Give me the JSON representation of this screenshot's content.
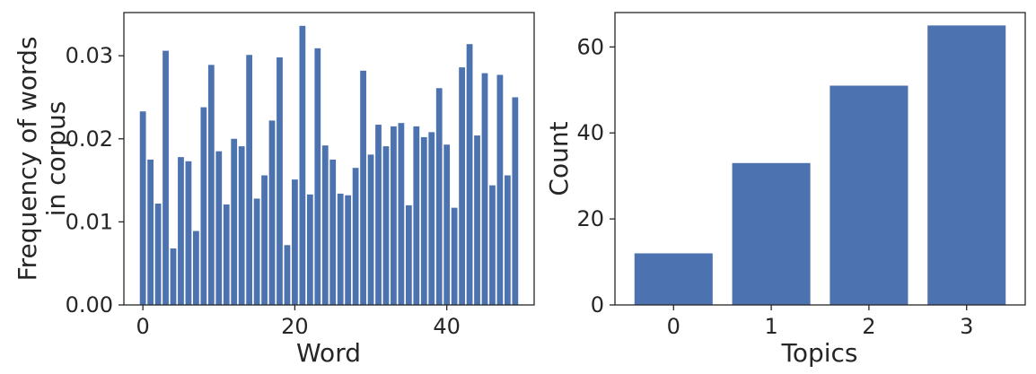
{
  "chart_data": [
    {
      "type": "bar",
      "title": "",
      "xlabel": "Word",
      "ylabel_lines": [
        "Frequency of words",
        "in corpus"
      ],
      "bar_color": "#4c72b0",
      "xlim": [
        -2.5,
        51.5
      ],
      "ylim": [
        0,
        0.0352
      ],
      "xticks": [
        0,
        20,
        40
      ],
      "yticks": [
        0.0,
        0.01,
        0.02,
        0.03
      ],
      "ytick_labels": [
        "0.00",
        "0.01",
        "0.02",
        "0.03"
      ],
      "grid": false,
      "x": [
        0,
        1,
        2,
        3,
        4,
        5,
        6,
        7,
        8,
        9,
        10,
        11,
        12,
        13,
        14,
        15,
        16,
        17,
        18,
        19,
        20,
        21,
        22,
        23,
        24,
        25,
        26,
        27,
        28,
        29,
        30,
        31,
        32,
        33,
        34,
        35,
        36,
        37,
        38,
        39,
        40,
        41,
        42,
        43,
        44,
        45,
        46,
        47,
        48,
        49
      ],
      "values": [
        0.0233,
        0.0175,
        0.0122,
        0.0306,
        0.0068,
        0.0178,
        0.0173,
        0.0089,
        0.0238,
        0.0289,
        0.0185,
        0.0121,
        0.02,
        0.0191,
        0.0301,
        0.0128,
        0.0156,
        0.0222,
        0.0298,
        0.0072,
        0.0151,
        0.0336,
        0.0133,
        0.0309,
        0.0192,
        0.0175,
        0.0134,
        0.0132,
        0.0165,
        0.0282,
        0.0181,
        0.0217,
        0.0191,
        0.0215,
        0.0219,
        0.012,
        0.0215,
        0.0202,
        0.0208,
        0.0261,
        0.0193,
        0.0117,
        0.0286,
        0.0314,
        0.0204,
        0.0279,
        0.0144,
        0.0277,
        0.0156,
        0.025
      ]
    },
    {
      "type": "bar",
      "title": "",
      "xlabel": "Topics",
      "ylabel": "Count",
      "bar_color": "#4c72b0",
      "categories": [
        "0",
        "1",
        "2",
        "3"
      ],
      "values": [
        12,
        33,
        51,
        65
      ],
      "xlim": [
        -0.6,
        3.6
      ],
      "ylim": [
        0,
        68
      ],
      "yticks": [
        0,
        20,
        40,
        60
      ],
      "grid": false
    }
  ]
}
